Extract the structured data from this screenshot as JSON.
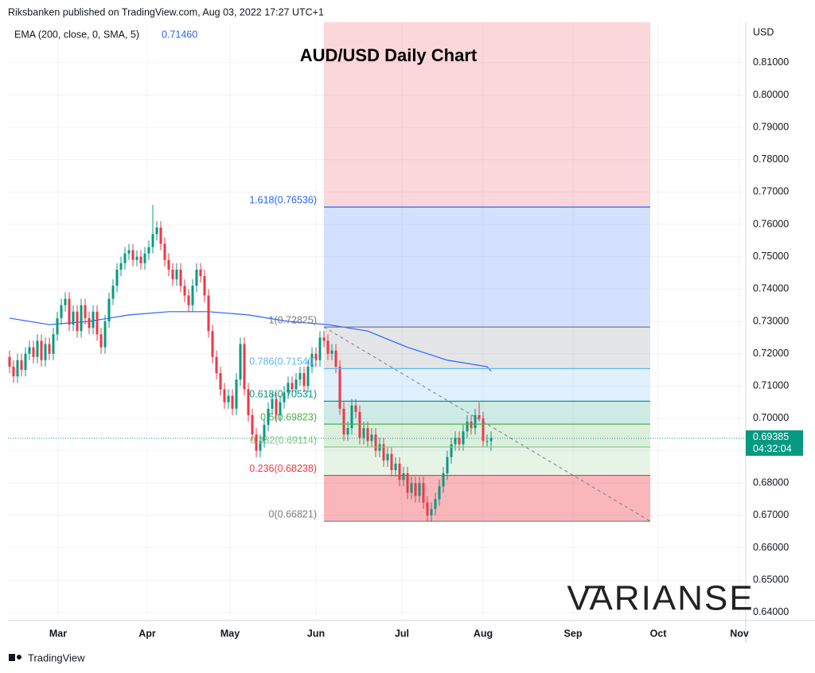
{
  "header": "Riksbanken published on TradingView.com, Aug 03, 2022 17:27 UTC+1",
  "footer": "TradingView",
  "watermark": "VARIANSE",
  "chart_data": {
    "type": "candlestick",
    "title": "AUD/USD Daily Chart",
    "currency": "USD",
    "indicator": {
      "name": "EMA (200, close, 0, SMA, 5)",
      "value_label": "0.71460",
      "color": "#2962ff",
      "x": [
        0,
        10,
        20,
        30,
        40,
        50,
        60,
        70,
        80,
        90,
        100,
        110,
        120,
        121
      ],
      "values": [
        0.731,
        0.729,
        0.73,
        0.732,
        0.733,
        0.733,
        0.732,
        0.73,
        0.729,
        0.727,
        0.722,
        0.718,
        0.716,
        0.7146
      ]
    },
    "last_price": {
      "value": 0.69385,
      "label": "0.69385",
      "countdown": "04:32:04",
      "color": "#089981"
    },
    "months": [
      "Mar",
      "Apr",
      "May",
      "Jun",
      "Jul",
      "Aug",
      "Sep",
      "Oct",
      "Nov"
    ],
    "up_color": "#089981",
    "down_color": "#f23645",
    "open": [
      0.719,
      0.716,
      0.713,
      0.718,
      0.715,
      0.72,
      0.722,
      0.719,
      0.724,
      0.718,
      0.723,
      0.72,
      0.726,
      0.731,
      0.735,
      0.737,
      0.729,
      0.733,
      0.727,
      0.735,
      0.731,
      0.728,
      0.733,
      0.726,
      0.722,
      0.73,
      0.737,
      0.741,
      0.746,
      0.748,
      0.751,
      0.752,
      0.749,
      0.75,
      0.748,
      0.751,
      0.753,
      0.757,
      0.759,
      0.754,
      0.749,
      0.746,
      0.743,
      0.746,
      0.741,
      0.738,
      0.735,
      0.741,
      0.746,
      0.744,
      0.738,
      0.727,
      0.719,
      0.714,
      0.709,
      0.705,
      0.707,
      0.703,
      0.712,
      0.723,
      0.709,
      0.701,
      0.695,
      0.69,
      0.693,
      0.698,
      0.703,
      0.706,
      0.701,
      0.705,
      0.708,
      0.711,
      0.709,
      0.712,
      0.714,
      0.71,
      0.716,
      0.72,
      0.718,
      0.725,
      0.724,
      0.72,
      0.721,
      0.716,
      0.703,
      0.695,
      0.697,
      0.704,
      0.702,
      0.694,
      0.697,
      0.693,
      0.695,
      0.69,
      0.692,
      0.687,
      0.689,
      0.684,
      0.686,
      0.681,
      0.683,
      0.677,
      0.68,
      0.676,
      0.68,
      0.674,
      0.67,
      0.672,
      0.675,
      0.679,
      0.683,
      0.688,
      0.692,
      0.694,
      0.692,
      0.696,
      0.699,
      0.697,
      0.701,
      0.7,
      0.693,
      0.693
    ],
    "high": [
      0.721,
      0.718,
      0.72,
      0.72,
      0.722,
      0.724,
      0.724,
      0.726,
      0.726,
      0.725,
      0.725,
      0.728,
      0.733,
      0.737,
      0.739,
      0.739,
      0.735,
      0.735,
      0.737,
      0.737,
      0.733,
      0.735,
      0.735,
      0.728,
      0.732,
      0.739,
      0.743,
      0.748,
      0.75,
      0.753,
      0.754,
      0.754,
      0.752,
      0.752,
      0.753,
      0.755,
      0.766,
      0.761,
      0.761,
      0.756,
      0.751,
      0.748,
      0.748,
      0.748,
      0.743,
      0.74,
      0.743,
      0.748,
      0.748,
      0.746,
      0.74,
      0.729,
      0.721,
      0.716,
      0.711,
      0.709,
      0.709,
      0.714,
      0.725,
      0.725,
      0.711,
      0.703,
      0.697,
      0.695,
      0.7,
      0.705,
      0.708,
      0.708,
      0.707,
      0.71,
      0.713,
      0.713,
      0.714,
      0.716,
      0.716,
      0.718,
      0.722,
      0.722,
      0.727,
      0.727,
      0.726,
      0.723,
      0.723,
      0.718,
      0.705,
      0.699,
      0.706,
      0.706,
      0.704,
      0.699,
      0.699,
      0.697,
      0.697,
      0.694,
      0.694,
      0.691,
      0.691,
      0.688,
      0.688,
      0.685,
      0.685,
      0.682,
      0.682,
      0.682,
      0.682,
      0.676,
      0.674,
      0.677,
      0.681,
      0.685,
      0.69,
      0.694,
      0.696,
      0.696,
      0.698,
      0.701,
      0.701,
      0.703,
      0.705,
      0.702,
      0.695,
      0.696
    ],
    "low": [
      0.714,
      0.711,
      0.711,
      0.713,
      0.713,
      0.718,
      0.717,
      0.717,
      0.716,
      0.716,
      0.718,
      0.718,
      0.724,
      0.729,
      0.733,
      0.727,
      0.727,
      0.725,
      0.725,
      0.729,
      0.726,
      0.726,
      0.724,
      0.72,
      0.72,
      0.728,
      0.735,
      0.739,
      0.744,
      0.746,
      0.749,
      0.747,
      0.747,
      0.746,
      0.746,
      0.749,
      0.751,
      0.755,
      0.752,
      0.747,
      0.744,
      0.741,
      0.741,
      0.739,
      0.736,
      0.733,
      0.733,
      0.739,
      0.742,
      0.736,
      0.725,
      0.717,
      0.712,
      0.707,
      0.703,
      0.703,
      0.701,
      0.701,
      0.71,
      0.707,
      0.699,
      0.693,
      0.688,
      0.688,
      0.691,
      0.696,
      0.701,
      0.699,
      0.699,
      0.703,
      0.706,
      0.707,
      0.707,
      0.71,
      0.708,
      0.708,
      0.714,
      0.716,
      0.716,
      0.722,
      0.718,
      0.718,
      0.714,
      0.701,
      0.693,
      0.693,
      0.695,
      0.7,
      0.692,
      0.692,
      0.691,
      0.691,
      0.688,
      0.688,
      0.685,
      0.685,
      0.682,
      0.682,
      0.679,
      0.679,
      0.675,
      0.675,
      0.674,
      0.674,
      0.672,
      0.668,
      0.668,
      0.67,
      0.673,
      0.677,
      0.681,
      0.686,
      0.69,
      0.69,
      0.69,
      0.694,
      0.695,
      0.695,
      0.699,
      0.691,
      0.691,
      0.69
    ],
    "close": [
      0.716,
      0.713,
      0.718,
      0.715,
      0.72,
      0.722,
      0.719,
      0.724,
      0.718,
      0.723,
      0.72,
      0.726,
      0.731,
      0.735,
      0.737,
      0.729,
      0.733,
      0.727,
      0.735,
      0.731,
      0.728,
      0.733,
      0.726,
      0.722,
      0.73,
      0.737,
      0.741,
      0.746,
      0.748,
      0.751,
      0.752,
      0.749,
      0.75,
      0.748,
      0.751,
      0.753,
      0.757,
      0.759,
      0.754,
      0.749,
      0.746,
      0.743,
      0.746,
      0.741,
      0.738,
      0.735,
      0.741,
      0.746,
      0.744,
      0.738,
      0.727,
      0.719,
      0.714,
      0.709,
      0.705,
      0.707,
      0.703,
      0.712,
      0.723,
      0.709,
      0.701,
      0.695,
      0.69,
      0.693,
      0.698,
      0.703,
      0.706,
      0.701,
      0.705,
      0.708,
      0.711,
      0.709,
      0.712,
      0.714,
      0.71,
      0.716,
      0.72,
      0.718,
      0.725,
      0.724,
      0.72,
      0.721,
      0.716,
      0.703,
      0.695,
      0.697,
      0.704,
      0.702,
      0.694,
      0.697,
      0.693,
      0.695,
      0.69,
      0.692,
      0.687,
      0.689,
      0.684,
      0.686,
      0.681,
      0.683,
      0.677,
      0.68,
      0.676,
      0.68,
      0.674,
      0.67,
      0.672,
      0.675,
      0.679,
      0.683,
      0.688,
      0.692,
      0.694,
      0.692,
      0.696,
      0.699,
      0.697,
      0.701,
      0.7,
      0.693,
      0.693,
      0.694
    ],
    "fib_levels": [
      {
        "value": 0.76536,
        "label": "1.618(0.76536)",
        "color": "#2962ff"
      },
      {
        "value": 0.72825,
        "label": "1(0.72825)",
        "color": "#787b86"
      },
      {
        "value": 0.7154,
        "label": "0.786(0.71540)",
        "color": "#64b5f6"
      },
      {
        "value": 0.70531,
        "label": "0.618(0.70531)",
        "color": "#089981"
      },
      {
        "value": 0.69823,
        "label": "0.5(0.69823)",
        "color": "#4caf50"
      },
      {
        "value": 0.69114,
        "label": "0.382(0.69114)",
        "color": "#81c784"
      },
      {
        "value": 0.68238,
        "label": "0.236(0.68238)",
        "color": "#f23645"
      },
      {
        "value": 0.66821,
        "label": "0(0.66821)",
        "color": "#787b86"
      }
    ],
    "extension_color": "#f23645",
    "ylim": [
      0.6375,
      0.8225
    ],
    "yticks": [
      {
        "value": 0.81,
        "label": "0.81000"
      },
      {
        "value": 0.8,
        "label": "0.80000"
      },
      {
        "value": 0.79,
        "label": "0.79000"
      },
      {
        "value": 0.78,
        "label": "0.78000"
      },
      {
        "value": 0.77,
        "label": "0.77000"
      },
      {
        "value": 0.76,
        "label": "0.76000"
      },
      {
        "value": 0.75,
        "label": "0.75000"
      },
      {
        "value": 0.74,
        "label": "0.74000"
      },
      {
        "value": 0.73,
        "label": "0.73000"
      },
      {
        "value": 0.72,
        "label": "0.72000"
      },
      {
        "value": 0.71,
        "label": "0.71000"
      },
      {
        "value": 0.7,
        "label": "0.70000"
      },
      {
        "value": 0.69,
        "label": "0.69000"
      },
      {
        "value": 0.68,
        "label": "0.68000"
      },
      {
        "value": 0.67,
        "label": "0.67000"
      },
      {
        "value": 0.66,
        "label": "0.66000"
      },
      {
        "value": 0.65,
        "label": "0.65000"
      },
      {
        "value": 0.64,
        "label": "0.64000"
      }
    ],
    "grid": true
  }
}
